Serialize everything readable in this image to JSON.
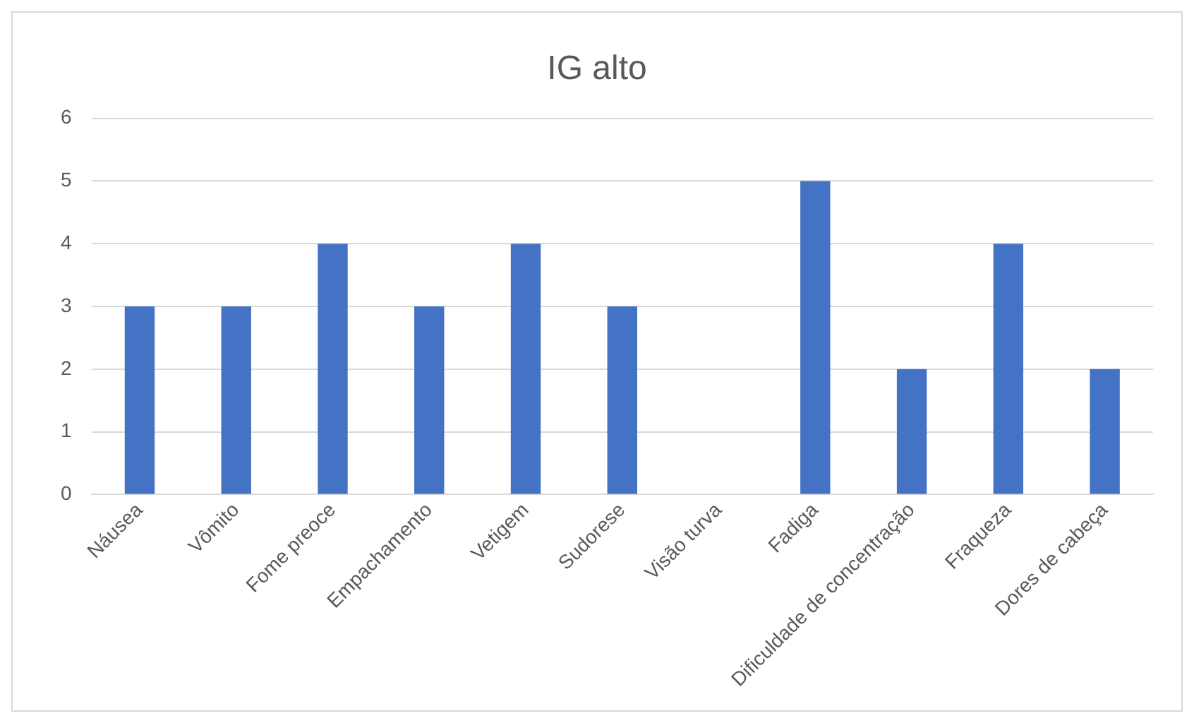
{
  "chart_data": {
    "type": "bar",
    "title": "IG alto",
    "categories": [
      "Náusea",
      "Vômito",
      "Fome preoce",
      "Empachamento",
      "Vetigem",
      "Sudorese",
      "Visão turva",
      "Fadiga",
      "Dificuldade de concentração",
      "Fraqueza",
      "Dores de cabeça"
    ],
    "values": [
      3,
      3,
      4,
      3,
      4,
      3,
      0,
      5,
      2,
      4,
      2
    ],
    "color": "#4472c4",
    "ylim": [
      0,
      6
    ],
    "yticks": [
      0,
      1,
      2,
      3,
      4,
      5,
      6
    ],
    "grid": "y"
  }
}
